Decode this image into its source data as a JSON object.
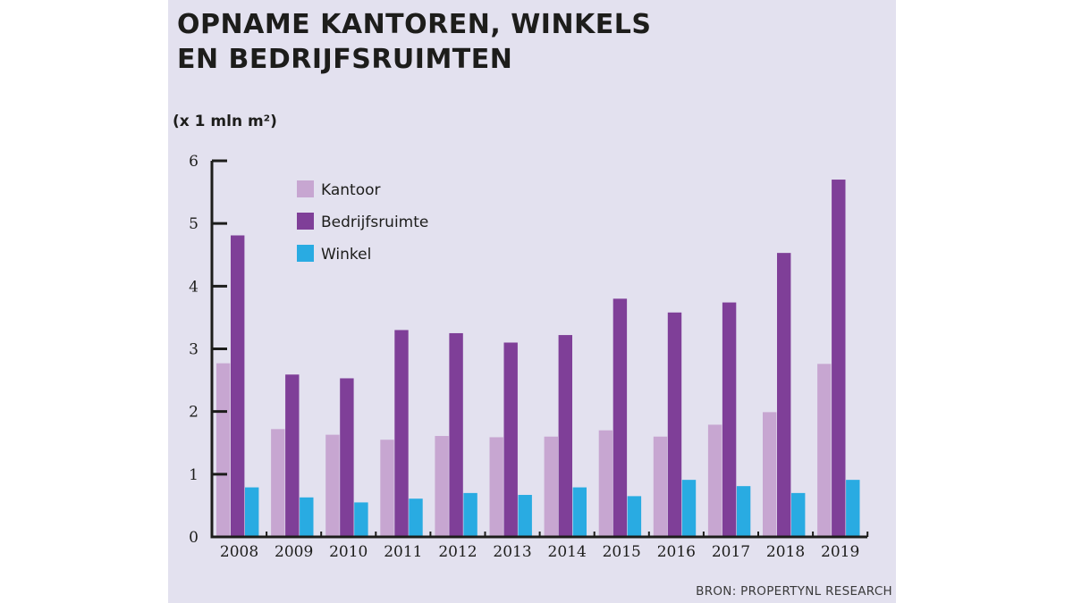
{
  "title": "OPNAME KANTOREN, WINKELS EN BEDRIJFSRUIMTEN",
  "unit_label": "(x 1 mln m²)",
  "source": "BRON: PROPERTYNL RESEARCH",
  "colors": {
    "background": "#e3e1ef",
    "Kantoor": "#c7a6d1",
    "Bedrijfsruimte": "#7f3f98",
    "Winkel": "#29abe2"
  },
  "chart_data": {
    "type": "bar",
    "title": "OPNAME KANTOREN, WINKELS EN BEDRIJFSRUIMTEN",
    "ylabel": "(x 1 mln m²)",
    "xlabel": "",
    "ylim": [
      0,
      6
    ],
    "yticks": [
      "0",
      "1",
      "2",
      "3",
      "4",
      "5",
      "6"
    ],
    "grid": false,
    "legend_position": "top-left",
    "categories": [
      "2008",
      "2009",
      "2010",
      "2011",
      "2012",
      "2013",
      "2014",
      "2015",
      "2016",
      "2017",
      "2018",
      "2019"
    ],
    "series": [
      {
        "name": "Kantoor",
        "color": "#c7a6d1",
        "values": [
          2.77,
          1.72,
          1.63,
          1.55,
          1.61,
          1.59,
          1.6,
          1.7,
          1.6,
          1.79,
          1.99,
          2.76
        ]
      },
      {
        "name": "Bedrijfsruimte",
        "color": "#7f3f98",
        "values": [
          4.81,
          2.59,
          2.53,
          3.3,
          3.25,
          3.1,
          3.22,
          3.8,
          3.58,
          3.74,
          4.53,
          5.7
        ]
      },
      {
        "name": "Winkel",
        "color": "#29abe2",
        "values": [
          0.79,
          0.63,
          0.55,
          0.61,
          0.7,
          0.67,
          0.79,
          0.65,
          0.91,
          0.81,
          0.7,
          0.91
        ]
      }
    ]
  }
}
